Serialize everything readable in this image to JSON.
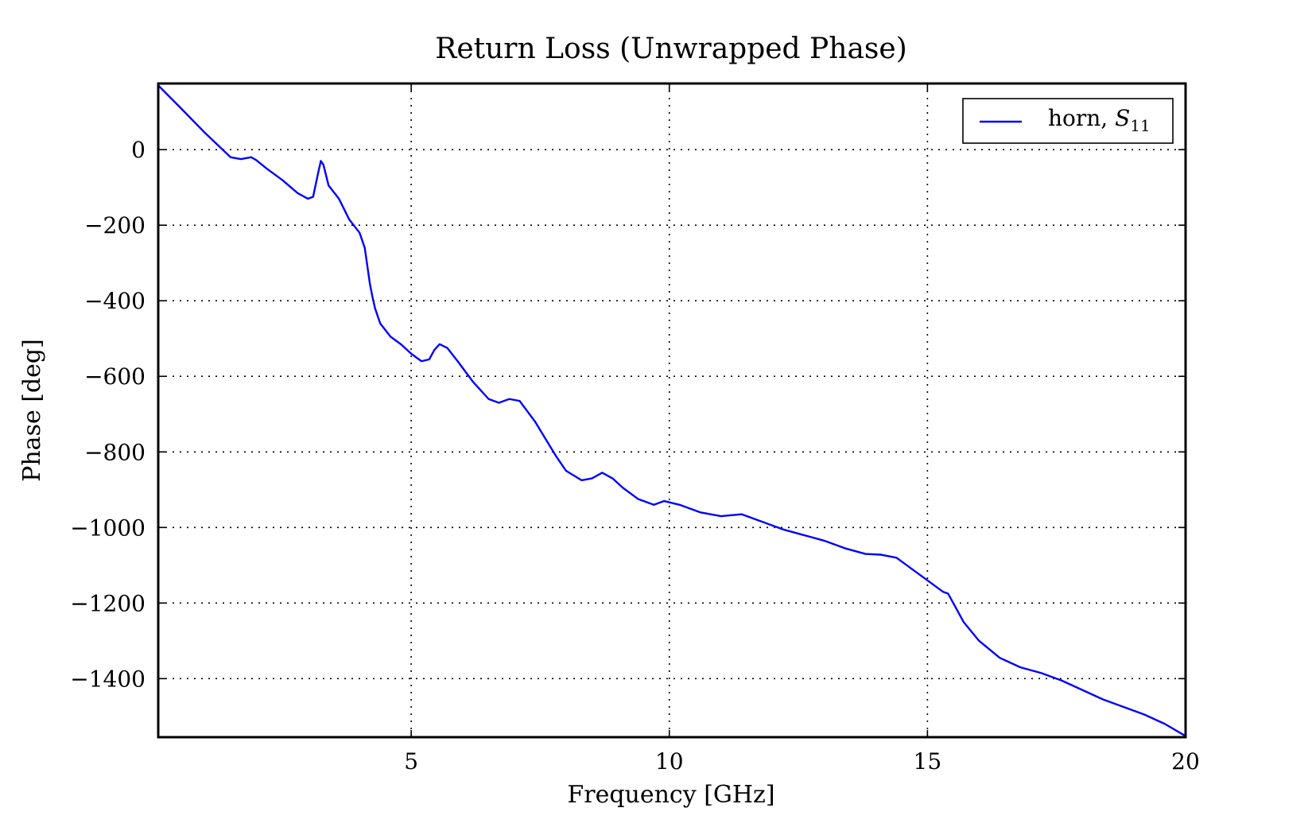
{
  "chart_data": {
    "type": "line",
    "title": "Return Loss (Unwrapped Phase)",
    "xlabel": "Frequency [GHz]",
    "ylabel": "Phase [deg]",
    "xlim": [
      0.1,
      20
    ],
    "ylim": [
      -1555,
      175
    ],
    "xticks": [
      5,
      10,
      15,
      20
    ],
    "yticks": [
      0,
      -200,
      -400,
      -600,
      -800,
      -1000,
      -1200,
      -1400
    ],
    "ytick_labels": [
      "0",
      "−200",
      "−400",
      "−600",
      "−800",
      "−1000",
      "−1200",
      "−1400"
    ],
    "grid": true,
    "legend_position": "top-right",
    "series": [
      {
        "name": "horn, S11",
        "color": "#0000ff",
        "x": [
          0.1,
          0.5,
          1.0,
          1.5,
          1.7,
          1.9,
          2.0,
          2.2,
          2.5,
          2.8,
          3.0,
          3.1,
          3.2,
          3.25,
          3.3,
          3.4,
          3.6,
          3.8,
          4.0,
          4.1,
          4.2,
          4.25,
          4.3,
          4.4,
          4.6,
          4.8,
          5.0,
          5.2,
          5.35,
          5.45,
          5.55,
          5.7,
          5.9,
          6.2,
          6.5,
          6.7,
          6.9,
          7.1,
          7.4,
          7.6,
          7.8,
          8.0,
          8.3,
          8.5,
          8.7,
          8.9,
          9.1,
          9.4,
          9.7,
          9.9,
          10.2,
          10.6,
          11.0,
          11.4,
          11.8,
          12.2,
          12.6,
          13.0,
          13.4,
          13.8,
          14.1,
          14.4,
          14.8,
          15.0,
          15.2,
          15.3,
          15.4,
          15.5,
          15.7,
          16.0,
          16.4,
          16.8,
          17.2,
          17.6,
          18.0,
          18.4,
          18.8,
          19.2,
          19.6,
          20.0
        ],
        "y": [
          170,
          115,
          45,
          -20,
          -25,
          -20,
          -28,
          -50,
          -80,
          -115,
          -130,
          -125,
          -60,
          -30,
          -40,
          -95,
          -130,
          -185,
          -220,
          -260,
          -355,
          -390,
          -420,
          -460,
          -495,
          -515,
          -540,
          -560,
          -555,
          -530,
          -515,
          -525,
          -560,
          -615,
          -660,
          -670,
          -660,
          -665,
          -720,
          -765,
          -810,
          -850,
          -875,
          -870,
          -855,
          -870,
          -895,
          -925,
          -940,
          -930,
          -940,
          -960,
          -970,
          -965,
          -985,
          -1005,
          -1020,
          -1035,
          -1055,
          -1070,
          -1072,
          -1080,
          -1120,
          -1140,
          -1160,
          -1170,
          -1175,
          -1200,
          -1250,
          -1300,
          -1345,
          -1370,
          -1385,
          -1405,
          -1430,
          -1455,
          -1475,
          -1495,
          -1520,
          -1552
        ]
      }
    ]
  },
  "legend": {
    "label_prefix": "horn, ",
    "label_symbol": "S",
    "label_subscript": "11"
  }
}
